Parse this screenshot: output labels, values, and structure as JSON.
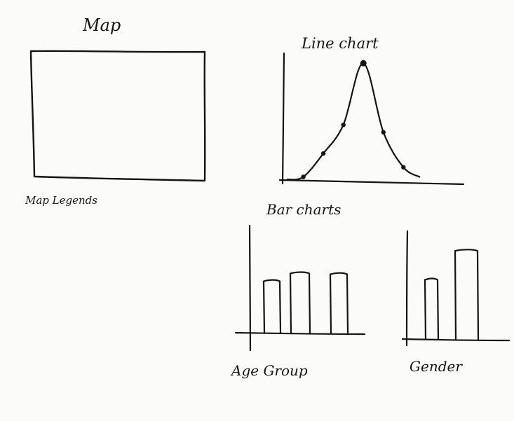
{
  "sketch": {
    "map_title": "Map",
    "map_legends": "Map Legends",
    "line_chart_title": "Line chart",
    "bar_charts_title": "Bar charts",
    "age_group_label": "Age Group",
    "gender_label": "Gender"
  },
  "chart_data": [
    {
      "type": "line",
      "title": "Line chart",
      "x": [
        1,
        2,
        3,
        4,
        5,
        6
      ],
      "series": [
        {
          "values": [
            0.3,
            2.5,
            5.2,
            11.0,
            4.5,
            1.2
          ]
        }
      ],
      "xlim": [
        0,
        9
      ],
      "ylim": [
        0,
        13
      ]
    },
    {
      "type": "bar",
      "title": "Age Group",
      "categories": [
        "",
        "",
        ""
      ],
      "values": [
        7.4,
        8.5,
        8.4
      ],
      "ylim": [
        0,
        15.4
      ]
    },
    {
      "type": "bar",
      "title": "Gender",
      "categories": [
        "",
        ""
      ],
      "values": [
        8.5,
        12.6
      ],
      "ylim": [
        0,
        15.4
      ]
    }
  ]
}
